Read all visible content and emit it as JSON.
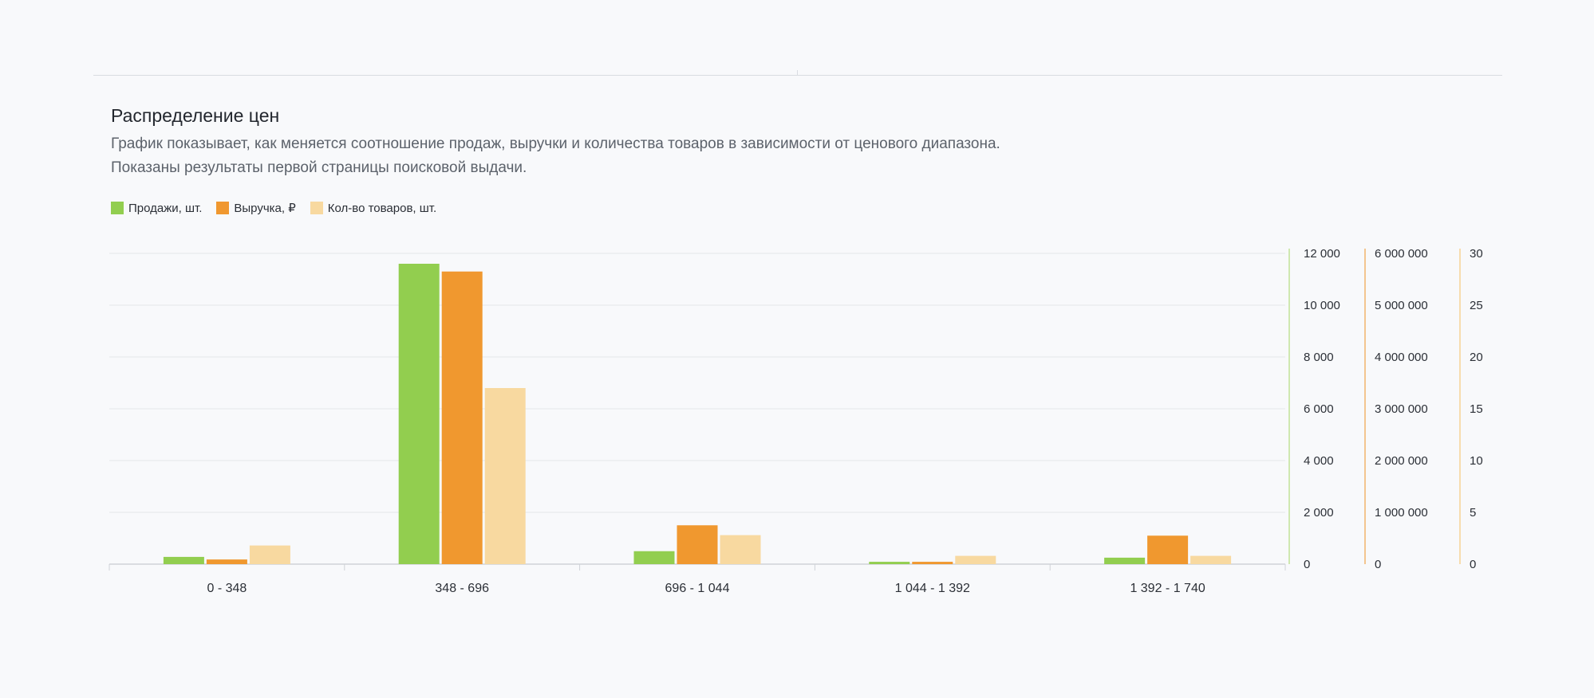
{
  "header": {
    "title": "Распределение цен",
    "description_line1": "График показывает, как меняется соотношение продаж, выручки и количества товаров в зависимости от ценового диапазона.",
    "description_line2": "Показаны результаты первой страницы поисковой выдачи."
  },
  "colors": {
    "sales": "#92ce4f",
    "revenue": "#f0982f",
    "items": "#f8d9a0",
    "grid": "#e3e6ea",
    "axis_text": "#2b2f36"
  },
  "chart_data": {
    "type": "bar",
    "categories": [
      "0 - 348",
      "348 - 696",
      "696 - 1 044",
      "1 044 - 1 392",
      "1 392 - 1 740"
    ],
    "series": [
      {
        "name": "Продажи, шт.",
        "values": [
          280,
          11600,
          500,
          90,
          250
        ],
        "axis": "sales"
      },
      {
        "name": "Выручка, ₽",
        "values": [
          90000,
          5650000,
          750000,
          45000,
          550000
        ],
        "axis": "revenue"
      },
      {
        "name": "Кол-во товаров, шт.",
        "values": [
          1.8,
          17,
          2.8,
          0.8,
          0.8
        ],
        "axis": "items"
      }
    ],
    "axes": {
      "sales": {
        "ylim": [
          0,
          12000
        ],
        "ticks": [
          "0",
          "2 000",
          "4 000",
          "6 000",
          "8 000",
          "10 000",
          "12 000"
        ]
      },
      "revenue": {
        "ylim": [
          0,
          6000000
        ],
        "ticks": [
          "0",
          "1 000 000",
          "2 000 000",
          "3 000 000",
          "4 000 000",
          "5 000 000",
          "6 000 000"
        ]
      },
      "items": {
        "ylim": [
          0,
          30
        ],
        "ticks": [
          "0",
          "5",
          "10",
          "15",
          "20",
          "25",
          "30"
        ]
      }
    },
    "grid": true,
    "legend_position": "top-left"
  }
}
